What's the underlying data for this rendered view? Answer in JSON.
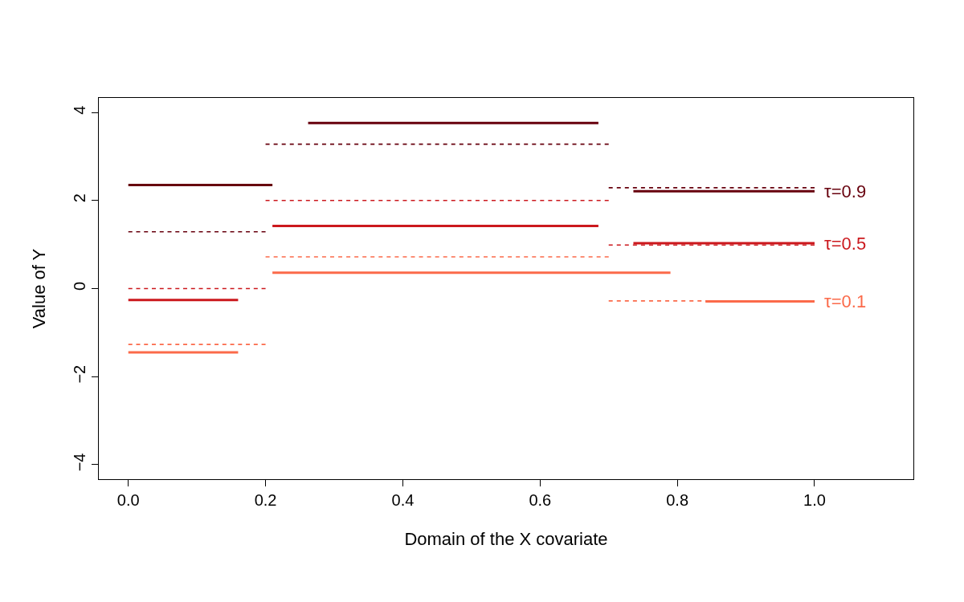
{
  "chart_data": {
    "type": "line",
    "xlabel": "Domain of the X covariate",
    "ylabel": "Value of Y",
    "series": [
      {
        "color": "#67000d",
        "line_style": "solid",
        "x": [
          0,
          0.21
        ],
        "values": [
          2.35,
          2.35
        ]
      },
      {
        "color": "#67000d",
        "line_style": "solid",
        "x": [
          0.262,
          0.685
        ],
        "values": [
          3.76,
          3.76
        ]
      },
      {
        "name": "τ=0.9",
        "color": "#67000d",
        "line_style": "solid",
        "x": [
          0.736,
          1.0
        ],
        "values": [
          2.21,
          2.21
        ]
      },
      {
        "color": "#cb181d",
        "line_style": "solid",
        "x": [
          0,
          0.16
        ],
        "values": [
          -0.26,
          -0.26
        ]
      },
      {
        "color": "#cb181d",
        "line_style": "solid",
        "x": [
          0.21,
          0.685
        ],
        "values": [
          1.42,
          1.42
        ]
      },
      {
        "name": "τ=0.5",
        "color": "#cb181d",
        "line_style": "solid",
        "x": [
          0.736,
          1.0
        ],
        "values": [
          1.03,
          1.03
        ]
      },
      {
        "color": "#fb6a4a",
        "line_style": "solid",
        "x": [
          0,
          0.16
        ],
        "values": [
          -1.45,
          -1.45
        ]
      },
      {
        "color": "#fb6a4a",
        "line_style": "solid",
        "x": [
          0.21,
          0.79
        ],
        "values": [
          0.36,
          0.36
        ]
      },
      {
        "name": "τ=0.1",
        "color": "#fb6a4a",
        "line_style": "solid",
        "x": [
          0.841,
          1.0
        ],
        "values": [
          -0.29,
          -0.29
        ]
      },
      {
        "color": "#67000d",
        "line_style": "dashed",
        "x": [
          0,
          0.2
        ],
        "values": [
          1.29,
          1.29
        ]
      },
      {
        "color": "#67000d",
        "line_style": "dashed",
        "x": [
          0.2,
          0.7
        ],
        "values": [
          3.28,
          3.28
        ]
      },
      {
        "color": "#67000d",
        "line_style": "dashed",
        "x": [
          0.7,
          1.0
        ],
        "values": [
          2.29,
          2.29
        ]
      },
      {
        "color": "#cb181d",
        "line_style": "dashed",
        "x": [
          0,
          0.2
        ],
        "values": [
          0.0,
          0.0
        ]
      },
      {
        "color": "#cb181d",
        "line_style": "dashed",
        "x": [
          0.2,
          0.7
        ],
        "values": [
          2.0,
          2.0
        ]
      },
      {
        "color": "#cb181d",
        "line_style": "dashed",
        "x": [
          0.7,
          1.0
        ],
        "values": [
          0.99,
          0.99
        ]
      },
      {
        "color": "#fb6a4a",
        "line_style": "dashed",
        "x": [
          0,
          0.2
        ],
        "values": [
          -1.27,
          -1.27
        ]
      },
      {
        "color": "#fb6a4a",
        "line_style": "dashed",
        "x": [
          0.2,
          0.7
        ],
        "values": [
          0.72,
          0.72
        ]
      },
      {
        "color": "#fb6a4a",
        "line_style": "dashed",
        "x": [
          0.7,
          1.0
        ],
        "values": [
          -0.28,
          -0.28
        ]
      }
    ],
    "xlim": [
      -0.043,
      1.144
    ],
    "ylim": [
      -4.33,
      4.33
    ],
    "xticks": [
      {
        "value": 0,
        "label": "0.0"
      },
      {
        "value": 0.2,
        "label": "0.2"
      },
      {
        "value": 0.4,
        "label": "0.4"
      },
      {
        "value": 0.6,
        "label": "0.6"
      },
      {
        "value": 0.8,
        "label": "0.8"
      },
      {
        "value": 1.0,
        "label": "1.0"
      }
    ],
    "yticks": [
      -4,
      -2,
      0,
      2,
      4
    ],
    "legend": false,
    "marker": "none"
  }
}
